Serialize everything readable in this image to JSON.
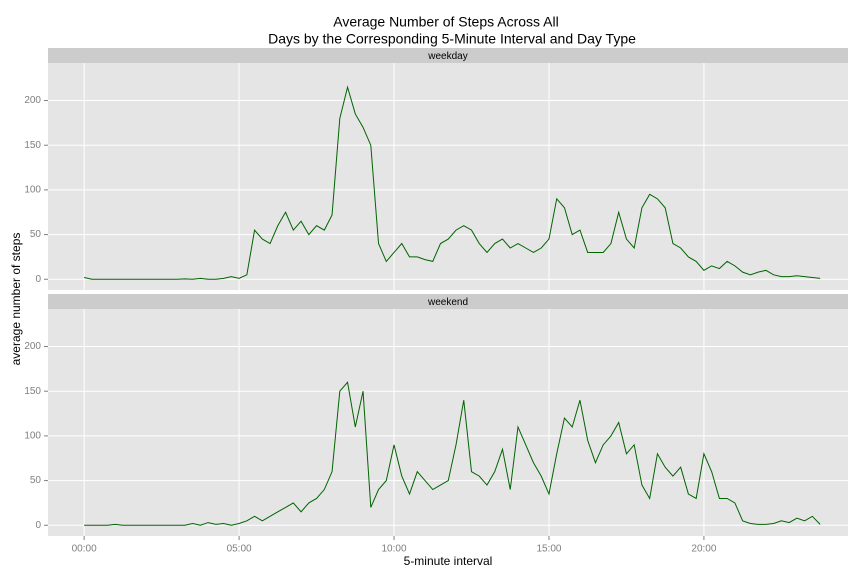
{
  "chart_data": {
    "type": "line",
    "title": [
      "Average Number of Steps Across All",
      "Days by the Corresponding 5-Minute Interval and Day Type"
    ],
    "xlabel": "5-minute interval",
    "ylabel": "average number of steps",
    "x": [
      0,
      15,
      30,
      45,
      60,
      75,
      90,
      105,
      120,
      135,
      150,
      165,
      180,
      195,
      210,
      225,
      240,
      255,
      270,
      285,
      300,
      315,
      330,
      345,
      360,
      375,
      390,
      405,
      420,
      435,
      450,
      465,
      480,
      495,
      510,
      525,
      540,
      555,
      570,
      585,
      600,
      615,
      630,
      645,
      660,
      675,
      690,
      705,
      720,
      735,
      750,
      765,
      780,
      795,
      810,
      825,
      840,
      855,
      870,
      885,
      900,
      915,
      930,
      945,
      960,
      975,
      990,
      1005,
      1020,
      1035,
      1050,
      1065,
      1080,
      1095,
      1110,
      1125,
      1140,
      1155,
      1170,
      1185,
      1200,
      1215,
      1230,
      1245,
      1260,
      1275,
      1290,
      1305,
      1320,
      1335,
      1350,
      1365,
      1380,
      1395,
      1410,
      1425
    ],
    "series": [
      {
        "name": "weekday",
        "color": "#006400",
        "values": [
          2,
          0,
          0,
          0,
          0,
          0,
          0,
          0,
          0,
          0,
          0,
          0,
          0,
          0.5,
          0,
          1,
          0,
          0,
          1,
          3,
          1,
          5,
          55,
          45,
          40,
          60,
          75,
          55,
          65,
          50,
          60,
          55,
          72,
          180,
          215,
          185,
          170,
          150,
          40,
          20,
          30,
          40,
          25,
          25,
          22,
          20,
          40,
          45,
          55,
          60,
          55,
          40,
          30,
          40,
          45,
          35,
          40,
          35,
          30,
          35,
          45,
          90,
          80,
          50,
          55,
          30,
          30,
          30,
          40,
          75,
          45,
          35,
          80,
          95,
          90,
          80,
          40,
          35,
          25,
          20,
          10,
          15,
          12,
          20,
          15,
          8,
          5,
          8,
          10,
          5,
          3,
          3,
          4,
          3,
          2,
          1
        ]
      },
      {
        "name": "weekend",
        "color": "#006400",
        "values": [
          0,
          0,
          0,
          0,
          1,
          0,
          0,
          0,
          0,
          0,
          0,
          0,
          0,
          0,
          2,
          0,
          3,
          1,
          2,
          0,
          2,
          5,
          10,
          5,
          10,
          15,
          20,
          25,
          15,
          25,
          30,
          40,
          60,
          150,
          160,
          110,
          150,
          20,
          40,
          50,
          90,
          55,
          35,
          60,
          50,
          40,
          45,
          50,
          90,
          140,
          60,
          55,
          45,
          60,
          85,
          40,
          110,
          90,
          70,
          55,
          35,
          80,
          120,
          110,
          140,
          95,
          70,
          90,
          100,
          115,
          80,
          90,
          45,
          30,
          80,
          65,
          55,
          65,
          35,
          30,
          80,
          60,
          30,
          30,
          25,
          5,
          2,
          1,
          1,
          2,
          5,
          3,
          8,
          5,
          10,
          1
        ]
      }
    ],
    "xlim": [
      -70,
      1479
    ],
    "xticks": [
      {
        "value": 0,
        "label": "00:00"
      },
      {
        "value": 300,
        "label": "05:00"
      },
      {
        "value": 600,
        "label": "10:00"
      },
      {
        "value": 900,
        "label": "15:00"
      },
      {
        "value": 1200,
        "label": "20:00"
      }
    ],
    "ylim": [
      -12,
      242
    ],
    "yticks": [
      0,
      50,
      100,
      150,
      200
    ],
    "grid": true
  }
}
